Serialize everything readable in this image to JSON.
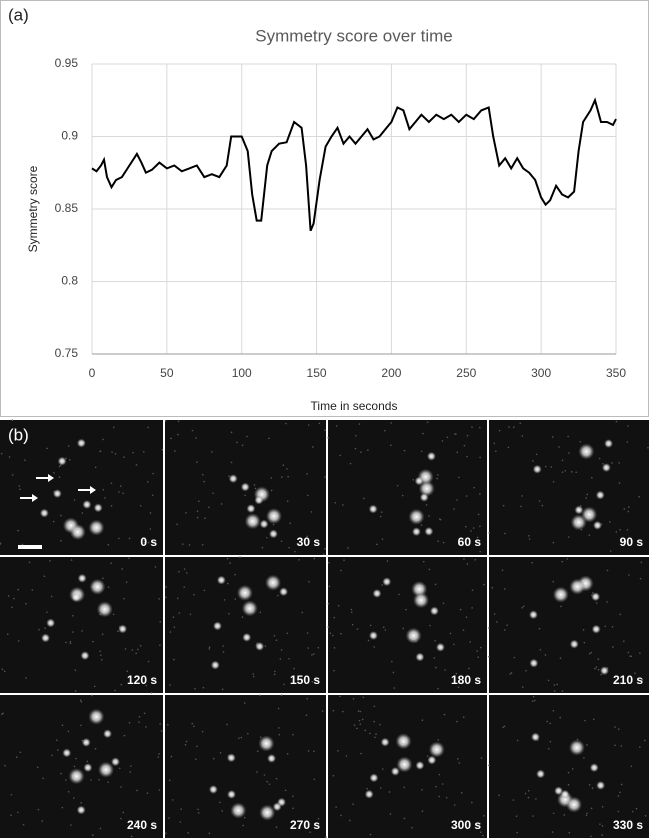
{
  "chart_data": {
    "type": "line",
    "panel_label": "(a)",
    "title": "Symmetry score over time",
    "x_label": "Time in seconds",
    "y_label": "Symmetry score",
    "x": [
      0,
      3,
      6,
      8,
      10,
      13,
      16,
      20,
      25,
      30,
      33,
      36,
      40,
      45,
      50,
      55,
      60,
      65,
      70,
      75,
      80,
      85,
      90,
      93,
      100,
      104,
      107,
      110,
      113,
      117,
      120,
      125,
      130,
      135,
      140,
      143,
      146,
      148,
      152,
      156,
      160,
      164,
      168,
      172,
      176,
      180,
      184,
      188,
      192,
      196,
      200,
      204,
      208,
      212,
      216,
      220,
      225,
      230,
      235,
      240,
      245,
      250,
      255,
      260,
      265,
      268,
      272,
      276,
      280,
      284,
      288,
      292,
      296,
      300,
      303,
      306,
      310,
      314,
      318,
      322,
      325,
      328,
      333,
      336,
      340,
      344,
      348,
      350
    ],
    "series": [
      {
        "color": "#000000",
        "values": [
          0.878,
          0.876,
          0.88,
          0.884,
          0.872,
          0.865,
          0.87,
          0.872,
          0.88,
          0.888,
          0.882,
          0.875,
          0.877,
          0.882,
          0.878,
          0.88,
          0.876,
          0.878,
          0.88,
          0.872,
          0.874,
          0.872,
          0.88,
          0.9,
          0.9,
          0.89,
          0.86,
          0.842,
          0.842,
          0.88,
          0.89,
          0.895,
          0.896,
          0.91,
          0.906,
          0.88,
          0.835,
          0.84,
          0.87,
          0.893,
          0.9,
          0.906,
          0.895,
          0.9,
          0.895,
          0.9,
          0.905,
          0.898,
          0.9,
          0.905,
          0.91,
          0.92,
          0.918,
          0.905,
          0.91,
          0.915,
          0.91,
          0.915,
          0.912,
          0.915,
          0.91,
          0.915,
          0.912,
          0.918,
          0.92,
          0.9,
          0.88,
          0.885,
          0.878,
          0.885,
          0.878,
          0.875,
          0.87,
          0.858,
          0.853,
          0.856,
          0.866,
          0.86,
          0.858,
          0.862,
          0.89,
          0.91,
          0.918,
          0.925,
          0.91,
          0.91,
          0.908,
          0.912
        ]
      }
    ],
    "xlim": [
      0,
      350
    ],
    "xticks": [
      0,
      50,
      100,
      150,
      200,
      250,
      300,
      350
    ],
    "ylim": [
      0.75,
      0.95
    ],
    "yticks": [
      0.75,
      0.8,
      0.85,
      0.9,
      0.95
    ],
    "grid": true
  },
  "panel_b": {
    "panel_label": "(b)",
    "frames": [
      "0 s",
      "30 s",
      "60 s",
      "90 s",
      "120 s",
      "150 s",
      "180 s",
      "210 s",
      "240 s",
      "270 s",
      "300 s",
      "330 s"
    ]
  }
}
